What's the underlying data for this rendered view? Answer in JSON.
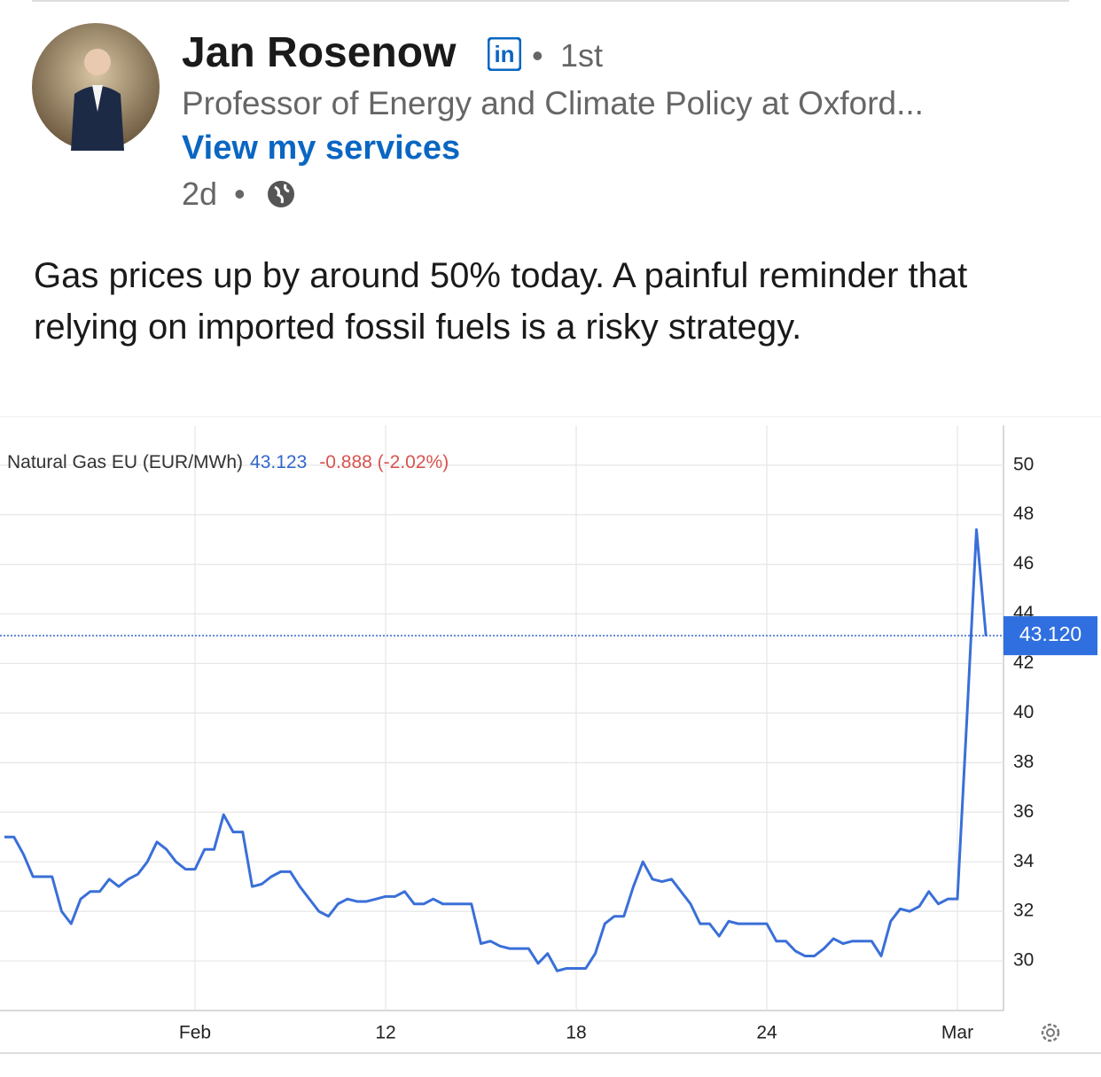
{
  "post": {
    "author": "Jan Rosenow",
    "degree": "1st",
    "headline": "Professor of Energy and Climate Policy at Oxford...",
    "link": "View my services",
    "time": "2d",
    "text": "Gas prices up by around 50% today. A painful reminder that relying on imported fossil fuels is a risky strategy."
  },
  "chart_data": {
    "type": "line",
    "title": "Natural Gas EU (EUR/MWh)",
    "quote": "43.123",
    "change": "-0.888 (-2.02%)",
    "color": "#3a6fd8",
    "categories": [
      null,
      null,
      null,
      null,
      null,
      null,
      null,
      null,
      null,
      null,
      null,
      null,
      null,
      null,
      null,
      null,
      null,
      null,
      null,
      null,
      "Feb",
      null,
      null,
      null,
      null,
      null,
      null,
      null,
      null,
      null,
      null,
      null,
      null,
      null,
      null,
      null,
      null,
      null,
      null,
      null,
      "12",
      null,
      null,
      null,
      null,
      null,
      null,
      null,
      null,
      null,
      null,
      null,
      null,
      null,
      null,
      null,
      null,
      null,
      null,
      null,
      "18",
      null,
      null,
      null,
      null,
      null,
      null,
      null,
      null,
      null,
      null,
      null,
      null,
      null,
      null,
      null,
      null,
      null,
      null,
      null,
      "24",
      null,
      null,
      null,
      null,
      null,
      null,
      null,
      null,
      null,
      null,
      null,
      null,
      null,
      null,
      null,
      null,
      null,
      null,
      null,
      "Mar",
      null,
      null,
      null
    ],
    "values": [
      35.0,
      35.0,
      34.3,
      33.4,
      33.4,
      33.4,
      32.0,
      31.5,
      32.5,
      32.8,
      32.8,
      33.3,
      33.0,
      33.3,
      33.5,
      34.0,
      34.8,
      34.5,
      34.0,
      33.7,
      33.7,
      34.5,
      34.5,
      35.9,
      35.2,
      35.2,
      33.0,
      33.1,
      33.4,
      33.6,
      33.6,
      33.0,
      32.5,
      32.0,
      31.8,
      32.3,
      32.5,
      32.4,
      32.4,
      32.5,
      32.6,
      32.6,
      32.8,
      32.3,
      32.3,
      32.5,
      32.3,
      32.3,
      32.3,
      32.3,
      30.7,
      30.8,
      30.6,
      30.5,
      30.5,
      30.5,
      29.9,
      30.3,
      29.6,
      29.7,
      29.7,
      29.7,
      30.3,
      31.5,
      31.8,
      31.8,
      33.0,
      34.0,
      33.3,
      33.2,
      33.3,
      32.8,
      32.3,
      31.5,
      31.5,
      31.0,
      31.6,
      31.5,
      31.5,
      31.5,
      31.5,
      30.8,
      30.8,
      30.4,
      30.2,
      30.2,
      30.5,
      30.9,
      30.7,
      30.8,
      30.8,
      30.8,
      30.2,
      31.6,
      32.1,
      32.0,
      32.2,
      32.8,
      32.3,
      32.5,
      32.5,
      39.8,
      47.4,
      43.1
    ],
    "ylim": [
      28,
      51.6
    ],
    "yticks": [
      30,
      32,
      34,
      36,
      38,
      40,
      42,
      44,
      46,
      48,
      50
    ],
    "grid": true,
    "last_price": {
      "value": 43.12,
      "label": "43.120"
    }
  }
}
